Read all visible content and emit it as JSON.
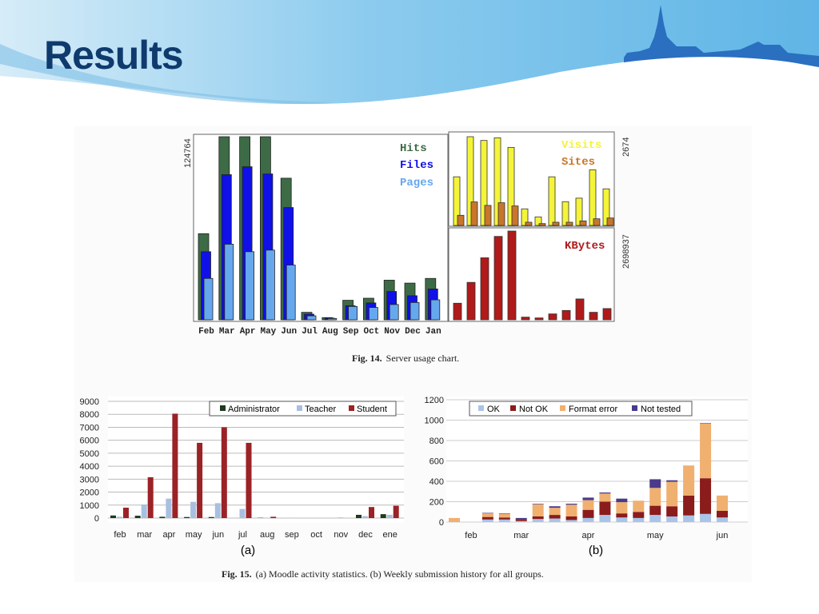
{
  "slide": {
    "title": "Results"
  },
  "captions": {
    "fig14_label": "Fig. 14.",
    "fig14_text": "Server usage chart.",
    "fig15_label": "Fig. 15.",
    "fig15_text": "(a) Moodle activity statistics. (b) Weekly submission history for all groups.",
    "sub_a": "(a)",
    "sub_b": "(b)"
  },
  "colors": {
    "hits": "#3d6b45",
    "files": "#1010e8",
    "pages": "#66a8ee",
    "visits": "#f4f43a",
    "sites": "#c8762a",
    "kbytes": "#b01a1a",
    "admin": "#1f3a1f",
    "teacher": "#a8bfe0",
    "student": "#9b2226",
    "ok": "#a9c4e8",
    "notok": "#8b1c1c",
    "format": "#f0b070",
    "nottested": "#4a3a8a"
  },
  "chart_data": [
    {
      "type": "bar",
      "title": "Server usage chart",
      "categories": [
        "Feb",
        "Mar",
        "Apr",
        "May",
        "Jun",
        "Jul",
        "Aug",
        "Sep",
        "Oct",
        "Nov",
        "Dec",
        "Jan"
      ],
      "ymax_label": "124764",
      "ylim": [
        0,
        124764
      ],
      "series": [
        {
          "name": "Hits",
          "values": [
            58700,
            124764,
            124764,
            124764,
            96500,
            5100,
            1500,
            13300,
            14700,
            27000,
            25000,
            28200
          ]
        },
        {
          "name": "Files",
          "values": [
            46400,
            98900,
            104300,
            99400,
            76500,
            3800,
            1100,
            9600,
            11500,
            19300,
            16400,
            21000
          ]
        },
        {
          "name": "Pages",
          "values": [
            28200,
            51500,
            46400,
            47500,
            37300,
            2700,
            900,
            9100,
            8400,
            10400,
            11800,
            13600
          ]
        }
      ]
    },
    {
      "type": "bar",
      "ymax_label": "2674",
      "ylim": [
        0,
        2674
      ],
      "series": [
        {
          "name": "Visits",
          "values": [
            1466,
            2674,
            2561,
            2642,
            2352,
            500,
            258,
            1466,
            717,
            822,
            1676,
            1103
          ]
        },
        {
          "name": "Sites",
          "values": [
            306,
            709,
            604,
            685,
            588,
            97,
            56,
            97,
            97,
            137,
            201,
            225
          ]
        }
      ]
    },
    {
      "type": "bar",
      "ymax_label": "2698937",
      "ylim": [
        0,
        2698937
      ],
      "series": [
        {
          "name": "KBytes",
          "values": [
            504000,
            1138000,
            1886000,
            2536000,
            2698937,
            81000,
            57000,
            179000,
            284000,
            634000,
            228000,
            342000
          ]
        }
      ]
    },
    {
      "type": "bar",
      "title": "(a) Moodle activity statistics",
      "categories": [
        "feb",
        "mar",
        "apr",
        "may",
        "jun",
        "jul",
        "aug",
        "sep",
        "oct",
        "nov",
        "dec",
        "ene"
      ],
      "yticks": [
        "0",
        "1000",
        "2000",
        "3000",
        "4000",
        "5000",
        "6000",
        "7000",
        "8000",
        "9000"
      ],
      "ylim": [
        0,
        9000
      ],
      "grid": true,
      "legend": "top-right",
      "series": [
        {
          "name": "Administrator",
          "values": [
            200,
            180,
            100,
            80,
            80,
            0,
            20,
            0,
            0,
            0,
            250,
            300
          ]
        },
        {
          "name": "Teacher",
          "values": [
            100,
            1050,
            1500,
            1250,
            1150,
            700,
            0,
            20,
            0,
            50,
            150,
            250
          ]
        },
        {
          "name": "Student",
          "values": [
            800,
            3150,
            8050,
            5800,
            7000,
            5800,
            100,
            0,
            0,
            0,
            850,
            950
          ]
        }
      ]
    },
    {
      "type": "bar",
      "stacked": true,
      "title": "(b) Weekly submission history for all groups",
      "xlabels": [
        {
          "label": "feb",
          "week": 2
        },
        {
          "label": "mar",
          "week": 5
        },
        {
          "label": "apr",
          "week": 9
        },
        {
          "label": "may",
          "week": 13
        },
        {
          "label": "jun",
          "week": 17
        }
      ],
      "yticks": [
        "0",
        "200",
        "400",
        "600",
        "800",
        "1000",
        "1200"
      ],
      "ylim": [
        0,
        1200
      ],
      "grid": true,
      "legend": "top",
      "series": [
        {
          "name": "OK",
          "values": [
            0,
            0,
            25,
            25,
            10,
            30,
            35,
            20,
            40,
            70,
            45,
            40,
            70,
            55,
            65,
            80,
            45
          ]
        },
        {
          "name": "Not OK",
          "values": [
            0,
            0,
            25,
            20,
            20,
            25,
            35,
            35,
            80,
            130,
            40,
            60,
            90,
            100,
            195,
            350,
            65
          ]
        },
        {
          "name": "Format error",
          "values": [
            40,
            0,
            35,
            35,
            0,
            120,
            70,
            115,
            95,
            80,
            110,
            110,
            175,
            240,
            295,
            535,
            150
          ]
        },
        {
          "name": "Not tested",
          "values": [
            0,
            0,
            5,
            5,
            10,
            5,
            15,
            10,
            25,
            10,
            35,
            0,
            85,
            15,
            0,
            5,
            0
          ]
        }
      ]
    }
  ]
}
